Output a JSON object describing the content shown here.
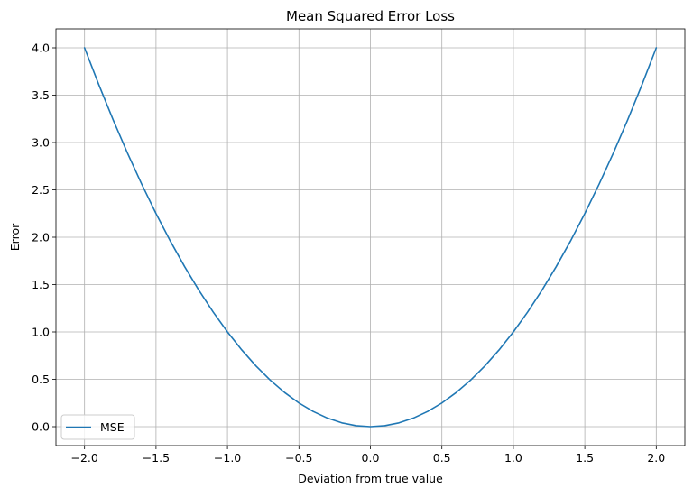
{
  "chart_data": {
    "type": "line",
    "title": "Mean Squared Error Loss",
    "xlabel": "Deviation from true value",
    "ylabel": "Error",
    "xlim": [
      -2.2,
      2.2
    ],
    "ylim": [
      -0.2,
      4.2
    ],
    "x_ticks": [
      -2.0,
      -1.5,
      -1.0,
      -0.5,
      0.0,
      0.5,
      1.0,
      1.5,
      2.0
    ],
    "x_tick_labels": [
      "−2.0",
      "−1.5",
      "−1.0",
      "−0.5",
      "0.0",
      "0.5",
      "1.0",
      "1.5",
      "2.0"
    ],
    "y_ticks": [
      0.0,
      0.5,
      1.0,
      1.5,
      2.0,
      2.5,
      3.0,
      3.5,
      4.0
    ],
    "y_tick_labels": [
      "0.0",
      "0.5",
      "1.0",
      "1.5",
      "2.0",
      "2.5",
      "3.0",
      "3.5",
      "4.0"
    ],
    "grid": true,
    "legend_position": "lower-left",
    "series": [
      {
        "name": "MSE",
        "color": "#1f77b4",
        "x": [
          -2.0,
          -1.9,
          -1.8,
          -1.7,
          -1.6,
          -1.5,
          -1.4,
          -1.3,
          -1.2,
          -1.1,
          -1.0,
          -0.9,
          -0.8,
          -0.7,
          -0.6,
          -0.5,
          -0.4,
          -0.3,
          -0.2,
          -0.1,
          0.0,
          0.1,
          0.2,
          0.3,
          0.4,
          0.5,
          0.6,
          0.7,
          0.8,
          0.9,
          1.0,
          1.1,
          1.2,
          1.3,
          1.4,
          1.5,
          1.6,
          1.7,
          1.8,
          1.9,
          2.0
        ],
        "y": [
          4.0,
          3.61,
          3.24,
          2.89,
          2.56,
          2.25,
          1.96,
          1.69,
          1.44,
          1.21,
          1.0,
          0.81,
          0.64,
          0.49,
          0.36,
          0.25,
          0.16,
          0.09,
          0.04,
          0.01,
          0.0,
          0.01,
          0.04,
          0.09,
          0.16,
          0.25,
          0.36,
          0.49,
          0.64,
          0.81,
          1.0,
          1.21,
          1.44,
          1.69,
          1.96,
          2.25,
          2.56,
          2.89,
          3.24,
          3.61,
          4.0
        ]
      }
    ]
  }
}
